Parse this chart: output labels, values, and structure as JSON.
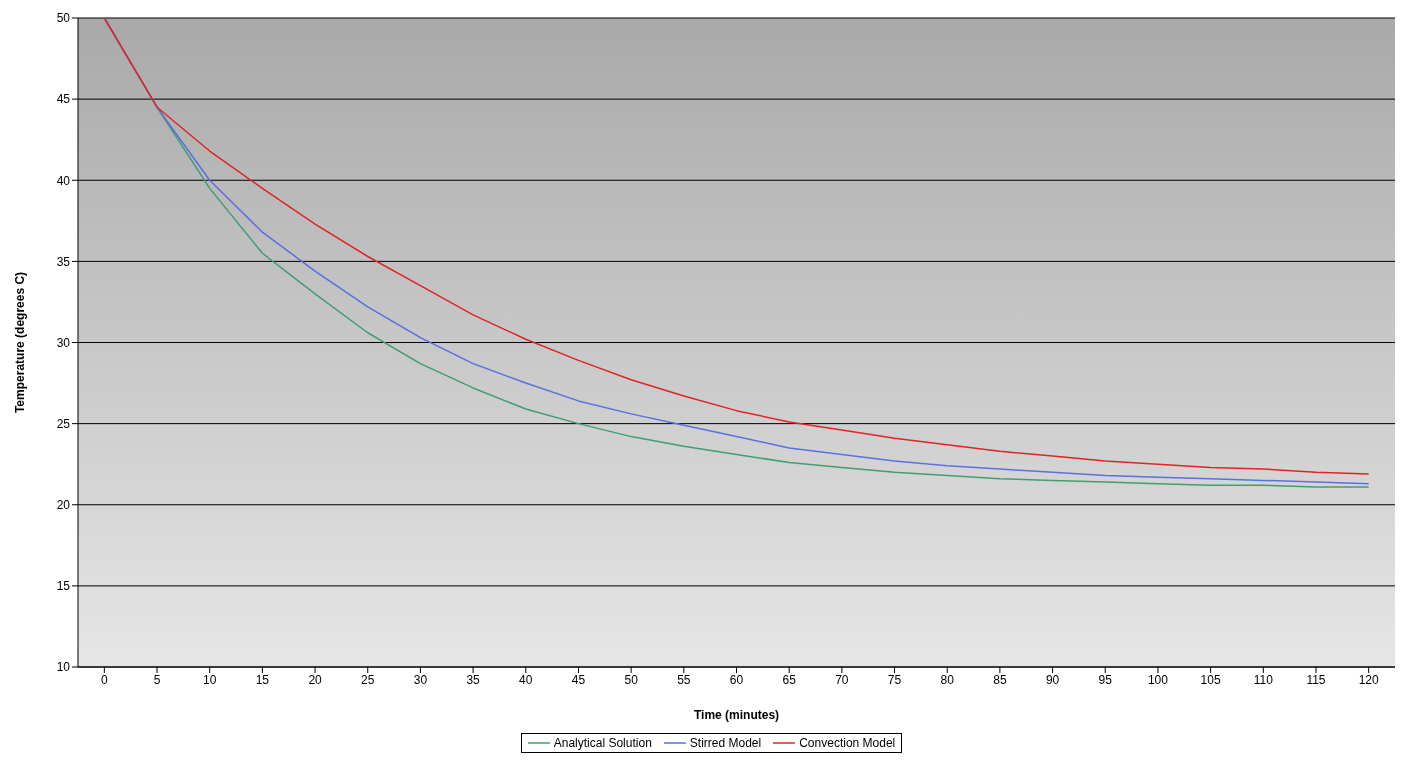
{
  "chart_data": {
    "type": "line",
    "xlabel": "Time (minutes)",
    "ylabel": "Temperature (degrees C)",
    "x": [
      0,
      5,
      10,
      15,
      20,
      25,
      30,
      35,
      40,
      45,
      50,
      55,
      60,
      65,
      70,
      75,
      80,
      85,
      90,
      95,
      100,
      105,
      110,
      115,
      120
    ],
    "series": [
      {
        "name": "Analytical Solution",
        "color": "#3f9f73",
        "values": [
          50,
          44.5,
          39.5,
          35.5,
          33,
          30.6,
          28.7,
          27.2,
          25.9,
          25,
          24.2,
          23.6,
          23.1,
          22.6,
          22.3,
          22,
          21.8,
          21.6,
          21.5,
          21.4,
          21.3,
          21.2,
          21.2,
          21.1,
          21.1
        ]
      },
      {
        "name": "Stirred Model",
        "color": "#5b6fe0",
        "values": [
          50,
          44.5,
          40,
          36.8,
          34.4,
          32.2,
          30.3,
          28.7,
          27.5,
          26.4,
          25.6,
          24.9,
          24.2,
          23.5,
          23.1,
          22.7,
          22.4,
          22.2,
          22,
          21.8,
          21.7,
          21.6,
          21.5,
          21.4,
          21.3
        ]
      },
      {
        "name": "Convection Model",
        "color": "#e02424",
        "values": [
          50,
          44.5,
          41.8,
          39.5,
          37.3,
          35.3,
          33.5,
          31.7,
          30.2,
          28.9,
          27.7,
          26.7,
          25.8,
          25.1,
          24.6,
          24.1,
          23.7,
          23.3,
          23,
          22.7,
          22.5,
          22.3,
          22.2,
          22,
          21.9
        ]
      }
    ],
    "xlim": [
      -2.5,
      122.5
    ],
    "xticks": [
      0,
      5,
      10,
      15,
      20,
      25,
      30,
      35,
      40,
      45,
      50,
      55,
      60,
      65,
      70,
      75,
      80,
      85,
      90,
      95,
      100,
      105,
      110,
      115,
      120
    ],
    "ylim": [
      10,
      50
    ],
    "yticks": [
      10,
      15,
      20,
      25,
      30,
      35,
      40,
      45,
      50
    ],
    "grid": "y",
    "legend": "bottom",
    "marker": "none",
    "line_style": "solid"
  }
}
